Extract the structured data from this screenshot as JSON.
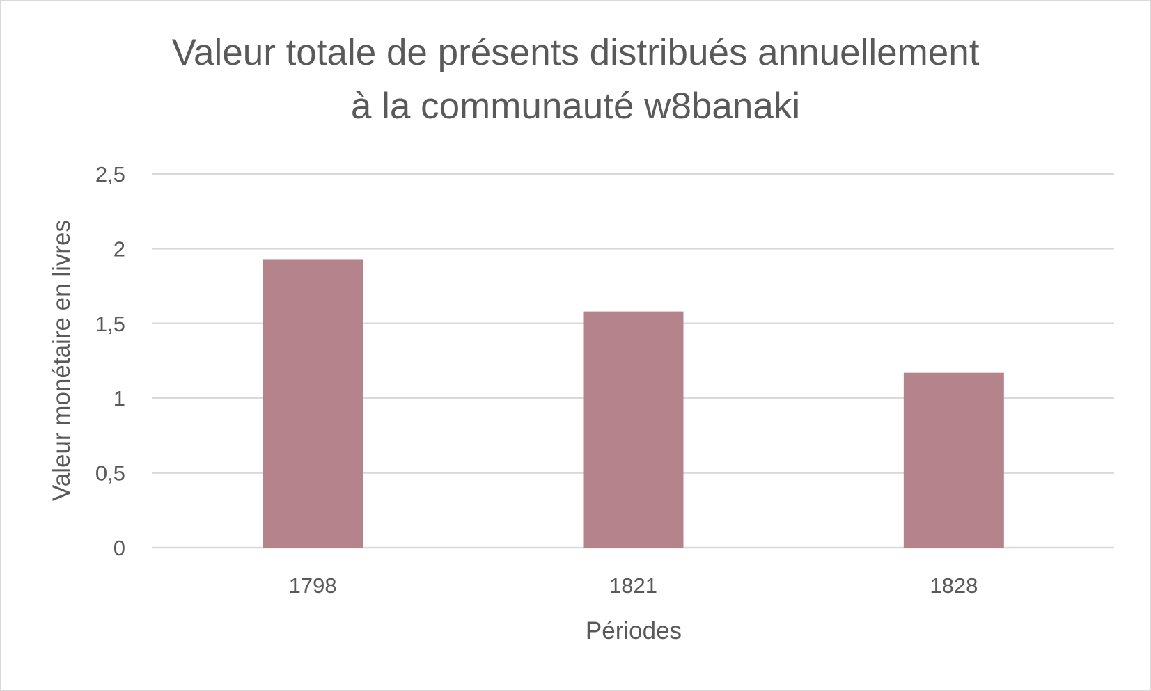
{
  "chart_data": {
    "type": "bar",
    "title_lines": [
      "Valeur totale de présents distribués annuellement",
      "à la communauté w8banaki"
    ],
    "categories": [
      "1798",
      "1821",
      "1828"
    ],
    "values": [
      1.93,
      1.58,
      1.17
    ],
    "xlabel": "Périodes",
    "ylabel": "Valeur monétaire en livres",
    "ylim": [
      0,
      2.5
    ],
    "yticks": [
      0,
      0.5,
      1,
      1.5,
      2,
      2.5
    ],
    "ytick_labels": [
      "0",
      "0,5",
      "1",
      "1,5",
      "2",
      "2,5"
    ],
    "grid": true,
    "bar_color": "#b5838b",
    "grid_color": "#d9d9d9"
  }
}
